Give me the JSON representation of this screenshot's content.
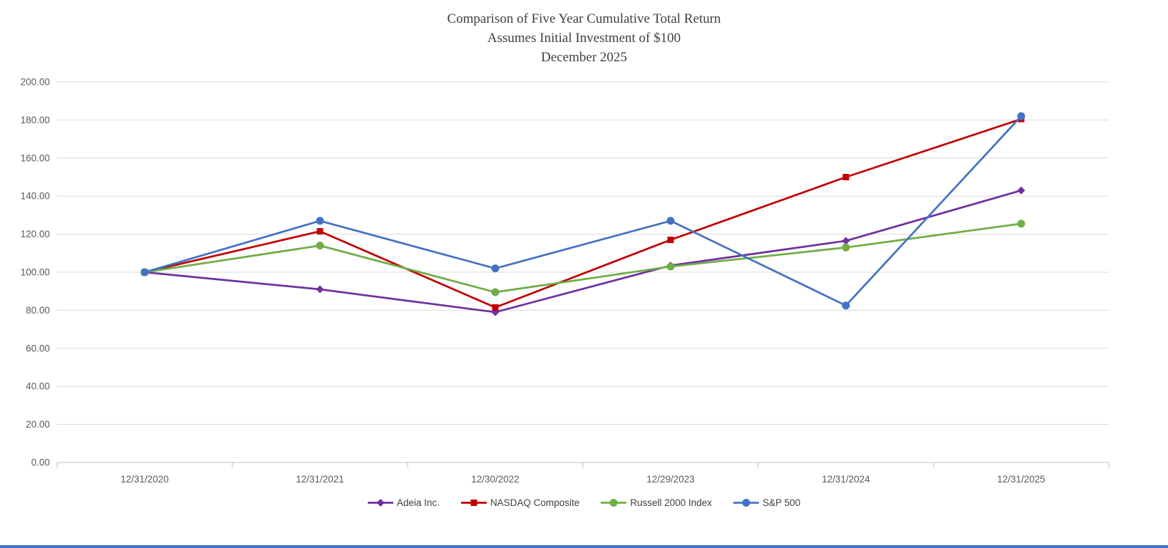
{
  "title": {
    "line1": "Comparison of Five Year Cumulative Total Return",
    "line2": "Assumes Initial Investment of $100",
    "line3": "December 2025"
  },
  "chart_data": {
    "type": "line",
    "title": "Comparison of Five Year Cumulative Total Return Assumes Initial Investment of $100 December 2025",
    "categories": [
      "12/31/2020",
      "12/31/2021",
      "12/30/2022",
      "12/29/2023",
      "12/31/2024",
      "12/31/2025"
    ],
    "series": [
      {
        "name": "Adeia Inc.",
        "color": "#7030A0",
        "marker": "diamond",
        "values": [
          100,
          91,
          79,
          103.5,
          116.5,
          143
        ]
      },
      {
        "name": "NASDAQ Composite",
        "color": "#C00000",
        "marker": "square",
        "values": [
          100,
          121.5,
          81.5,
          117,
          150,
          180.5
        ]
      },
      {
        "name": "Russell 2000 Index",
        "color": "#70AD47",
        "marker": "circle",
        "values": [
          100,
          114,
          89.5,
          103,
          113,
          125.5
        ]
      },
      {
        "name": "S&P 500",
        "color": "#4472C4",
        "marker": "circle",
        "values": [
          100,
          127,
          102,
          127,
          82.5,
          182
        ]
      }
    ],
    "xlabel": "",
    "ylabel": "",
    "ylim": [
      0,
      200
    ],
    "ytick_step": 20,
    "ytick_labels": [
      "0.00",
      "20.00",
      "40.00",
      "60.00",
      "80.00",
      "100.00",
      "120.00",
      "140.00",
      "160.00",
      "180.00",
      "200.00"
    ],
    "grid": true,
    "legend_position": "bottom"
  },
  "footer": {
    "accent_color": "#4472C4"
  }
}
